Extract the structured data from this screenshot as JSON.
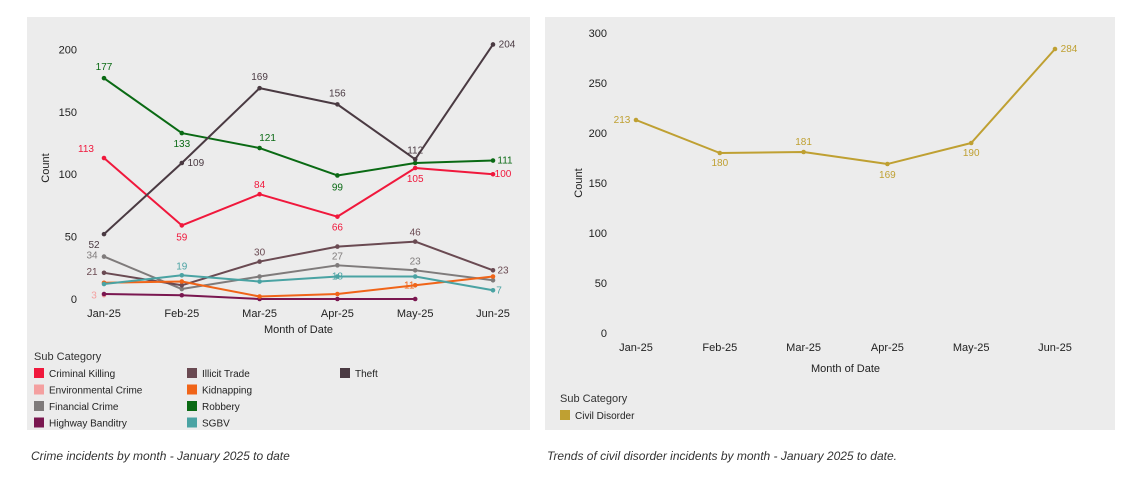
{
  "captions": {
    "left": "Crime incidents by month - January 2025 to date",
    "right": "Trends of civil disorder incidents by month - January 2025 to date."
  },
  "chart_data": [
    {
      "type": "line",
      "title": "",
      "xlabel": "Month of Date",
      "ylabel": "Count",
      "categories": [
        "Jan-25",
        "Feb-25",
        "Mar-25",
        "Apr-25",
        "May-25",
        "Jun-25"
      ],
      "ylim": [
        0,
        210
      ],
      "yticks": [
        0,
        50,
        100,
        150,
        200
      ],
      "grid": false,
      "legend_title": "Sub Category",
      "legend_position": "bottom",
      "series": [
        {
          "name": "Criminal Killing",
          "color": "#f0183c",
          "values": [
            113,
            59,
            84,
            66,
            105,
            100
          ],
          "labels": [
            113,
            59,
            84,
            66,
            105,
            100
          ]
        },
        {
          "name": "Environmental Crime",
          "color": "#f4a0a0",
          "values": [
            3,
            null,
            null,
            null,
            null,
            null
          ],
          "labels": [
            3,
            null,
            null,
            null,
            null,
            null
          ]
        },
        {
          "name": "Financial Crime",
          "color": "#7f7b7b",
          "values": [
            34,
            8,
            18,
            27,
            23,
            15
          ],
          "labels": [
            34,
            null,
            null,
            27,
            23,
            null
          ]
        },
        {
          "name": "Highway Banditry",
          "color": "#7a1750",
          "values": [
            4,
            3,
            0,
            0,
            0,
            null
          ],
          "labels": [
            null,
            null,
            null,
            null,
            null,
            null
          ]
        },
        {
          "name": "Illicit Trade",
          "color": "#6a4a52",
          "values": [
            21,
            11,
            30,
            42,
            46,
            23
          ],
          "labels": [
            21,
            null,
            30,
            null,
            46,
            23
          ]
        },
        {
          "name": "Kidnapping",
          "color": "#f06418",
          "values": [
            13,
            14,
            2,
            4,
            11,
            18
          ],
          "labels": [
            null,
            null,
            null,
            null,
            11,
            null
          ]
        },
        {
          "name": "Robbery",
          "color": "#0a6a14",
          "values": [
            177,
            133,
            121,
            99,
            109,
            111
          ],
          "labels": [
            177,
            133,
            121,
            99,
            null,
            111
          ]
        },
        {
          "name": "SGBV",
          "color": "#4aa3a3",
          "values": [
            12,
            19,
            14,
            18,
            18,
            7
          ],
          "labels": [
            null,
            19,
            null,
            18,
            null,
            7
          ]
        },
        {
          "name": "Theft",
          "color": "#4a3a42",
          "values": [
            52,
            109,
            169,
            156,
            112,
            204
          ],
          "labels": [
            52,
            109,
            169,
            156,
            112,
            204
          ]
        }
      ]
    },
    {
      "type": "line",
      "title": "",
      "xlabel": "Month of Date",
      "ylabel": "Count",
      "categories": [
        "Jan-25",
        "Feb-25",
        "Mar-25",
        "Apr-25",
        "May-25",
        "Jun-25"
      ],
      "ylim": [
        0,
        300
      ],
      "yticks": [
        0,
        50,
        100,
        150,
        200,
        250,
        300
      ],
      "grid": false,
      "legend_title": "Sub Category",
      "legend_position": "bottom",
      "series": [
        {
          "name": "Civil Disorder",
          "color": "#bfa032",
          "values": [
            213,
            180,
            181,
            169,
            190,
            284
          ],
          "labels": [
            213,
            180,
            181,
            169,
            190,
            284
          ]
        }
      ]
    }
  ]
}
